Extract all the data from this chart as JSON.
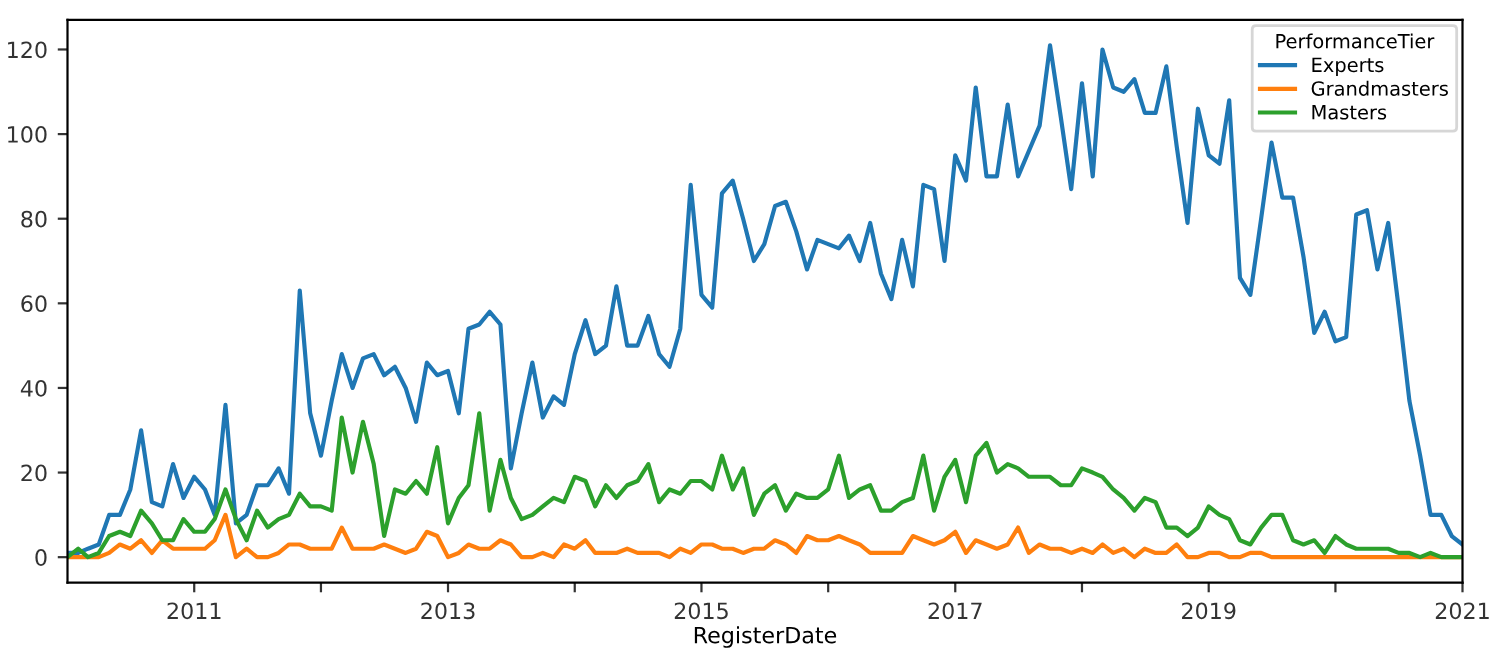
{
  "chart_data": {
    "type": "line",
    "xlabel": "RegisterDate",
    "legend_title": "PerformanceTier",
    "legend": "top right",
    "grid": false,
    "line_style": "solid",
    "marker": "none",
    "x": [
      "2010-01",
      "2010-02",
      "2010-03",
      "2010-04",
      "2010-05",
      "2010-06",
      "2010-07",
      "2010-08",
      "2010-09",
      "2010-10",
      "2010-11",
      "2010-12",
      "2011-01",
      "2011-02",
      "2011-03",
      "2011-04",
      "2011-05",
      "2011-06",
      "2011-07",
      "2011-08",
      "2011-09",
      "2011-10",
      "2011-11",
      "2011-12",
      "2012-01",
      "2012-02",
      "2012-03",
      "2012-04",
      "2012-05",
      "2012-06",
      "2012-07",
      "2012-08",
      "2012-09",
      "2012-10",
      "2012-11",
      "2012-12",
      "2013-01",
      "2013-02",
      "2013-03",
      "2013-04",
      "2013-05",
      "2013-06",
      "2013-07",
      "2013-08",
      "2013-09",
      "2013-10",
      "2013-11",
      "2013-12",
      "2014-01",
      "2014-02",
      "2014-03",
      "2014-04",
      "2014-05",
      "2014-06",
      "2014-07",
      "2014-08",
      "2014-09",
      "2014-10",
      "2014-11",
      "2014-12",
      "2015-01",
      "2015-02",
      "2015-03",
      "2015-04",
      "2015-05",
      "2015-06",
      "2015-07",
      "2015-08",
      "2015-09",
      "2015-10",
      "2015-11",
      "2015-12",
      "2016-01",
      "2016-02",
      "2016-03",
      "2016-04",
      "2016-05",
      "2016-06",
      "2016-07",
      "2016-08",
      "2016-09",
      "2016-10",
      "2016-11",
      "2016-12",
      "2017-01",
      "2017-02",
      "2017-03",
      "2017-04",
      "2017-05",
      "2017-06",
      "2017-07",
      "2017-08",
      "2017-09",
      "2017-10",
      "2017-11",
      "2017-12",
      "2018-01",
      "2018-02",
      "2018-03",
      "2018-04",
      "2018-05",
      "2018-06",
      "2018-07",
      "2018-08",
      "2018-09",
      "2018-10",
      "2018-11",
      "2018-12",
      "2019-01",
      "2019-02",
      "2019-03",
      "2019-04",
      "2019-05",
      "2019-06",
      "2019-07",
      "2019-08",
      "2019-09",
      "2019-10",
      "2019-11",
      "2019-12",
      "2020-01",
      "2020-02",
      "2020-03",
      "2020-04",
      "2020-05",
      "2020-06",
      "2020-07",
      "2020-08",
      "2020-09",
      "2020-10",
      "2020-11",
      "2020-12",
      "2021-01"
    ],
    "series": [
      {
        "name": "Experts",
        "color": "#1f77b4",
        "values": [
          1,
          1,
          2,
          3,
          10,
          10,
          16,
          30,
          13,
          12,
          22,
          14,
          19,
          16,
          10,
          36,
          8,
          10,
          17,
          17,
          21,
          15,
          63,
          34,
          24,
          37,
          48,
          40,
          47,
          48,
          43,
          45,
          40,
          32,
          46,
          43,
          44,
          34,
          54,
          55,
          58,
          55,
          21,
          34,
          46,
          33,
          38,
          36,
          48,
          56,
          48,
          50,
          64,
          50,
          50,
          57,
          48,
          45,
          54,
          88,
          62,
          59,
          86,
          89,
          80,
          70,
          74,
          83,
          84,
          77,
          68,
          75,
          74,
          73,
          76,
          70,
          79,
          67,
          61,
          75,
          64,
          88,
          87,
          70,
          95,
          89,
          111,
          90,
          90,
          107,
          90,
          96,
          102,
          121,
          104,
          87,
          112,
          90,
          120,
          111,
          110,
          113,
          105,
          105,
          116,
          97,
          79,
          106,
          95,
          93,
          108,
          66,
          62,
          80,
          98,
          85,
          85,
          71,
          53,
          58,
          51,
          52,
          81,
          82,
          68,
          79,
          59,
          37,
          24,
          10,
          10,
          5,
          3
        ]
      },
      {
        "name": "Grandmasters",
        "color": "#ff7f0e",
        "values": [
          0,
          0,
          0,
          0,
          1,
          3,
          2,
          4,
          1,
          4,
          2,
          2,
          2,
          2,
          4,
          10,
          0,
          2,
          0,
          0,
          1,
          3,
          3,
          2,
          2,
          2,
          7,
          2,
          2,
          2,
          3,
          2,
          1,
          2,
          6,
          5,
          0,
          1,
          3,
          2,
          2,
          4,
          3,
          0,
          0,
          1,
          0,
          3,
          2,
          4,
          1,
          1,
          1,
          2,
          1,
          1,
          1,
          0,
          2,
          1,
          3,
          3,
          2,
          2,
          1,
          2,
          2,
          4,
          3,
          1,
          5,
          4,
          4,
          5,
          4,
          3,
          1,
          1,
          1,
          1,
          5,
          4,
          3,
          4,
          6,
          1,
          4,
          3,
          2,
          3,
          7,
          1,
          3,
          2,
          2,
          1,
          2,
          1,
          3,
          1,
          2,
          0,
          2,
          1,
          1,
          3,
          0,
          0,
          1,
          1,
          0,
          0,
          1,
          1,
          0,
          0,
          0,
          0,
          0,
          0,
          0,
          0,
          0,
          0,
          0,
          0,
          0,
          0,
          0,
          0,
          0,
          0,
          0
        ]
      },
      {
        "name": "Masters",
        "color": "#2ca02c",
        "values": [
          0,
          2,
          0,
          1,
          5,
          6,
          5,
          11,
          8,
          4,
          4,
          9,
          6,
          6,
          9,
          16,
          9,
          4,
          11,
          7,
          9,
          10,
          15,
          12,
          12,
          11,
          33,
          20,
          32,
          22,
          5,
          16,
          15,
          18,
          15,
          26,
          8,
          14,
          17,
          34,
          11,
          23,
          14,
          9,
          10,
          12,
          14,
          13,
          19,
          18,
          12,
          17,
          14,
          17,
          18,
          22,
          13,
          16,
          15,
          18,
          18,
          16,
          24,
          16,
          21,
          10,
          15,
          17,
          11,
          15,
          14,
          14,
          16,
          24,
          14,
          16,
          17,
          11,
          11,
          13,
          14,
          24,
          11,
          19,
          23,
          13,
          24,
          27,
          20,
          22,
          21,
          19,
          19,
          19,
          17,
          17,
          21,
          20,
          19,
          16,
          14,
          11,
          14,
          13,
          7,
          7,
          5,
          7,
          12,
          10,
          9,
          4,
          3,
          7,
          10,
          10,
          4,
          3,
          4,
          1,
          5,
          3,
          2,
          2,
          2,
          2,
          1,
          1,
          0,
          1,
          0,
          0,
          0
        ]
      }
    ],
    "xlim": [
      "2010-01",
      "2021-01"
    ],
    "xticks": [
      {
        "value": "2011-01",
        "label": "2011"
      },
      {
        "value": "2012-01",
        "label": null
      },
      {
        "value": "2013-01",
        "label": "2013"
      },
      {
        "value": "2014-01",
        "label": null
      },
      {
        "value": "2015-01",
        "label": "2015"
      },
      {
        "value": "2016-01",
        "label": null
      },
      {
        "value": "2017-01",
        "label": "2017"
      },
      {
        "value": "2018-01",
        "label": null
      },
      {
        "value": "2019-01",
        "label": "2019"
      },
      {
        "value": "2020-01",
        "label": null
      },
      {
        "value": "2021-01",
        "label": "2021"
      }
    ],
    "ylim": [
      -6,
      127
    ],
    "yticks": [
      0,
      20,
      40,
      60,
      80,
      100,
      120
    ]
  }
}
